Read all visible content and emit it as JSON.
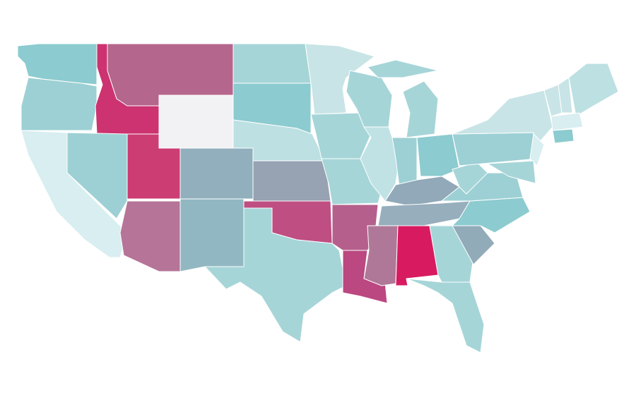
{
  "map": {
    "regions": [
      {
        "color": "#8ccbcf"
      },
      {
        "color": "#9dd0d4"
      },
      {
        "color": "#d8eef0"
      },
      {
        "color": "#cc3370"
      },
      {
        "color": "#9dd0d4"
      },
      {
        "color": "#b5668c"
      },
      {
        "color": "#f2f2f4"
      },
      {
        "color": "#cc3d74"
      },
      {
        "color": "#b57498"
      },
      {
        "color": "#91afbc"
      },
      {
        "color": "#91b8c2"
      },
      {
        "color": "#a6d5d8"
      },
      {
        "color": "#8ccbcf"
      },
      {
        "color": "#bde0e2"
      },
      {
        "color": "#97a2b3"
      },
      {
        "color": "#bf4e82"
      },
      {
        "color": "#a6d5d8"
      },
      {
        "color": "#c8e4e6"
      },
      {
        "color": "#a6d5d8"
      },
      {
        "color": "#a6d5d8"
      },
      {
        "color": "#b5608c"
      },
      {
        "color": "#bb4880"
      },
      {
        "color": "#a6d5d8"
      },
      {
        "color": "#c0e2e4"
      },
      {
        "color": "#a6d5d8"
      },
      {
        "color": "#a6d5d8"
      },
      {
        "color": "#9dd0d4"
      },
      {
        "color": "#8ccbcf"
      },
      {
        "color": "#91a9b8"
      },
      {
        "color": "#97aebd"
      },
      {
        "color": "#b07898"
      },
      {
        "color": "#d81b60"
      },
      {
        "color": "#a6d5d8"
      },
      {
        "color": "#a6d5d8"
      },
      {
        "color": "#91abb9"
      },
      {
        "color": "#8ccbcf"
      },
      {
        "color": "#9dd0d4"
      },
      {
        "color": "#a6d5d8"
      },
      {
        "color": "#9dd0d4"
      },
      {
        "color": "#c8e4e6"
      },
      {
        "color": "#d8eef0"
      },
      {
        "color": "#a6d5d8"
      },
      {
        "color": "#c8e4e6"
      },
      {
        "color": "#c8e4e6"
      },
      {
        "color": "#bde0e2"
      },
      {
        "color": "#d8eef0"
      },
      {
        "color": "#8ccbcf"
      }
    ]
  }
}
